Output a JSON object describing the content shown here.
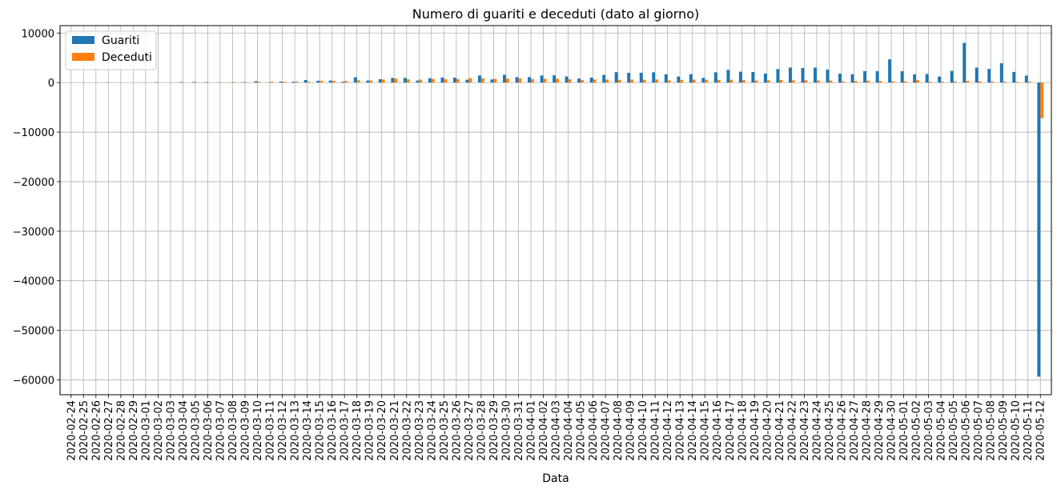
{
  "chart_data": {
    "type": "bar",
    "title": "Numero di guariti e deceduti (dato al giorno)",
    "xlabel": "Data",
    "ylabel": "",
    "ylim": [
      -63000,
      11500
    ],
    "yticks": [
      10000,
      0,
      -10000,
      -20000,
      -30000,
      -40000,
      -50000,
      -60000
    ],
    "ytick_labels": [
      "10000",
      "0",
      "−10000",
      "−20000",
      "−30000",
      "−40000",
      "−50000",
      "−60000"
    ],
    "grid": true,
    "legend_position": "top-left",
    "categories": [
      "2020-02-24",
      "2020-02-25",
      "2020-02-26",
      "2020-02-27",
      "2020-02-28",
      "2020-02-29",
      "2020-03-01",
      "2020-03-02",
      "2020-03-03",
      "2020-03-04",
      "2020-03-05",
      "2020-03-06",
      "2020-03-07",
      "2020-03-08",
      "2020-03-09",
      "2020-03-10",
      "2020-03-11",
      "2020-03-12",
      "2020-03-13",
      "2020-03-14",
      "2020-03-15",
      "2020-03-16",
      "2020-03-17",
      "2020-03-18",
      "2020-03-19",
      "2020-03-20",
      "2020-03-21",
      "2020-03-22",
      "2020-03-23",
      "2020-03-24",
      "2020-03-25",
      "2020-03-26",
      "2020-03-27",
      "2020-03-28",
      "2020-03-29",
      "2020-03-30",
      "2020-03-31",
      "2020-04-01",
      "2020-04-02",
      "2020-04-03",
      "2020-04-04",
      "2020-04-05",
      "2020-04-06",
      "2020-04-07",
      "2020-04-08",
      "2020-04-09",
      "2020-04-10",
      "2020-04-11",
      "2020-04-12",
      "2020-04-13",
      "2020-04-14",
      "2020-04-15",
      "2020-04-16",
      "2020-04-17",
      "2020-04-18",
      "2020-04-19",
      "2020-04-20",
      "2020-04-21",
      "2020-04-22",
      "2020-04-23",
      "2020-04-24",
      "2020-04-25",
      "2020-04-26",
      "2020-04-27",
      "2020-04-28",
      "2020-04-29",
      "2020-04-30",
      "2020-05-01",
      "2020-05-02",
      "2020-05-03",
      "2020-05-04",
      "2020-05-05",
      "2020-05-06",
      "2020-05-07",
      "2020-05-08",
      "2020-05-09",
      "2020-05-10",
      "2020-05-11",
      "2020-05-12"
    ],
    "series": [
      {
        "name": "Guariti",
        "color": "#1f77b4",
        "values": [
          0,
          0,
          0,
          45,
          0,
          4,
          33,
          97,
          11,
          116,
          138,
          109,
          66,
          33,
          102,
          280,
          41,
          213,
          181,
          527,
          369,
          414,
          192,
          1084,
          415,
          689,
          943,
          952,
          408,
          894,
          1036,
          999,
          589,
          1434,
          646,
          1590,
          1109,
          1118,
          1431,
          1480,
          1238,
          819,
          1022,
          1555,
          2099,
          1979,
          1985,
          2079,
          1677,
          1224,
          1695,
          962,
          2072,
          2563,
          2200,
          2128,
          1822,
          2723,
          3033,
          2943,
          3033,
          2622,
          1808,
          1696,
          2317,
          2311,
          4693,
          2304,
          1665,
          1740,
          1225,
          2352,
          8014,
          3031,
          2747,
          3911,
          2155,
          1401,
          -59360
        ]
      },
      {
        "name": "Deceduti",
        "color": "#ff7f0e",
        "values": [
          0,
          3,
          5,
          5,
          0,
          5,
          7,
          18,
          27,
          28,
          41,
          49,
          36,
          133,
          97,
          168,
          196,
          189,
          250,
          175,
          368,
          349,
          345,
          475,
          427,
          627,
          793,
          651,
          601,
          743,
          683,
          712,
          919,
          889,
          756,
          812,
          837,
          727,
          760,
          766,
          681,
          525,
          636,
          604,
          542,
          610,
          570,
          619,
          431,
          566,
          602,
          578,
          525,
          575,
          482,
          433,
          454,
          534,
          437,
          464,
          420,
          415,
          260,
          333,
          382,
          323,
          285,
          269,
          474,
          174,
          195,
          236,
          369,
          274,
          243,
          194,
          165,
          179,
          -7205
        ]
      }
    ]
  }
}
